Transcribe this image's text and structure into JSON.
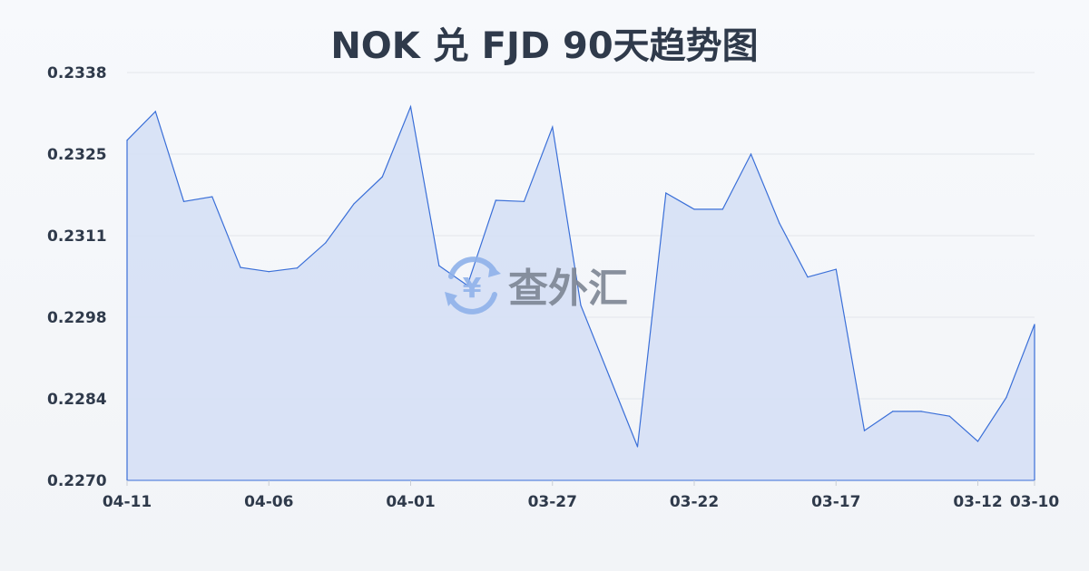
{
  "chart_data": {
    "type": "area",
    "title": "NOK 兑 FJD 90天趋势图",
    "xlabel": "",
    "ylabel": "",
    "ylim": [
      0.227,
      0.2338
    ],
    "grid": true,
    "y_ticks": [
      "0.2270",
      "0.2284",
      "0.2298",
      "0.2311",
      "0.2325",
      "0.2338"
    ],
    "x_ticks": [
      "04-11",
      "04-06",
      "04-01",
      "03-27",
      "03-22",
      "03-17",
      "03-12",
      "03-10"
    ],
    "x": [
      "04-11",
      "04-10",
      "04-09",
      "04-08",
      "04-07",
      "04-06",
      "04-05",
      "04-04",
      "04-03",
      "04-02",
      "04-01",
      "03-31",
      "03-30",
      "03-29",
      "03-28",
      "03-27",
      "03-26",
      "03-25",
      "03-24",
      "03-23",
      "03-22",
      "03-21",
      "03-20",
      "03-19",
      "03-18",
      "03-17",
      "03-16",
      "03-15",
      "03-14",
      "03-13",
      "03-12",
      "03-11",
      "03-10"
    ],
    "values": [
      0.23267,
      0.23315,
      0.23165,
      0.23173,
      0.23055,
      0.23048,
      0.23054,
      0.23096,
      0.23161,
      0.23206,
      0.23323,
      0.23058,
      0.23025,
      0.23167,
      0.23165,
      0.23289,
      0.22992,
      0.22874,
      0.22756,
      0.23179,
      0.23152,
      0.23152,
      0.23244,
      0.23129,
      0.23039,
      0.23052,
      0.22783,
      0.22815,
      0.22815,
      0.22807,
      0.22765,
      0.22838,
      0.2296
    ],
    "colors": {
      "line": "#3a6fd8",
      "fill": "#d6e0f5",
      "grid": "#e3e6eb",
      "text": "#2f3a4b"
    }
  },
  "watermark": {
    "text": "查外汇",
    "icon": "yen-exchange-icon"
  }
}
